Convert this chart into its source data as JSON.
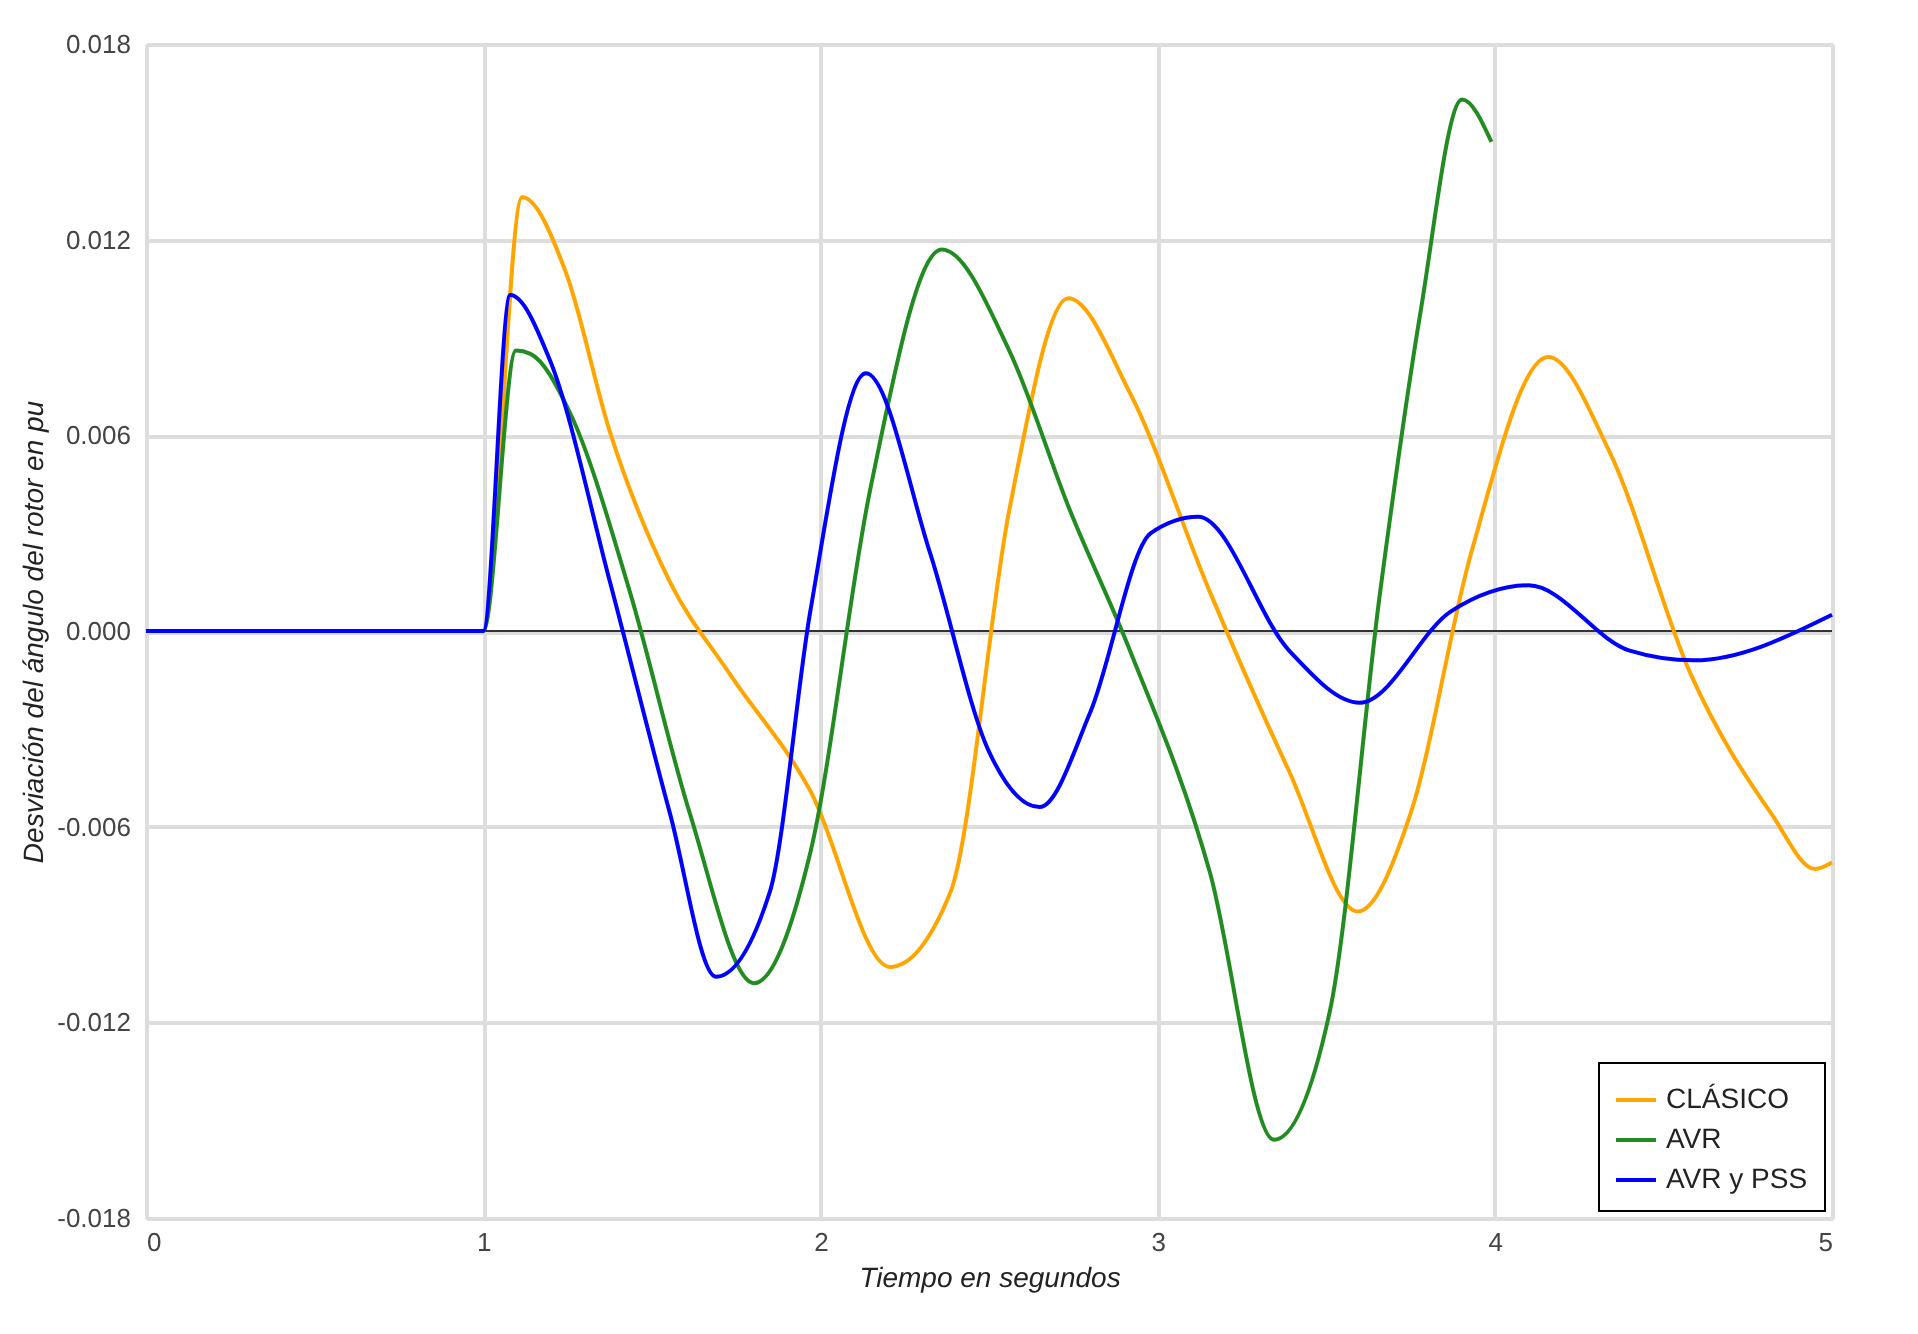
{
  "chart_data": {
    "type": "line",
    "xlabel": "Tiempo en segundos",
    "ylabel": "Desviación del ángulo del rotor en pu",
    "xlim": [
      0,
      5
    ],
    "xticks": [
      0,
      1,
      2,
      3,
      4,
      5
    ],
    "ylim": [
      -0.018,
      0.018
    ],
    "yticks": [
      {
        "value": -0.018,
        "label": "-0.018"
      },
      {
        "value": -0.012,
        "label": "-0.012"
      },
      {
        "value": -0.006,
        "label": "-0.006"
      },
      {
        "value": 0,
        "label": "0.000"
      },
      {
        "value": 0.006,
        "label": "0.006"
      },
      {
        "value": 0.012,
        "label": "0.012"
      },
      {
        "value": 0.018,
        "label": "0.018"
      }
    ],
    "grid": true,
    "legend": "bottom right",
    "marker": "none",
    "line_style": "solid",
    "ref_lines": [
      {
        "axis": "y",
        "value": 0,
        "label": null,
        "color": "#333333"
      }
    ],
    "series": [
      {
        "name": "CLÁSICO",
        "color": "#ffa500",
        "x": [
          0,
          1.0,
          1.115,
          1.245,
          1.376,
          1.554,
          1.73,
          1.97,
          2.206,
          2.386,
          2.56,
          2.735,
          2.918,
          3.155,
          3.39,
          3.594,
          3.75,
          3.93,
          4.158,
          4.34,
          4.58,
          4.82,
          4.95,
          5.0
        ],
        "values": [
          0,
          0,
          0.0133,
          0.011,
          0.0061,
          0.0015,
          -0.0013,
          -0.0049,
          -0.0103,
          -0.008,
          0.0037,
          0.0102,
          0.0073,
          0.0012,
          -0.0043,
          -0.0086,
          -0.0056,
          0.0024,
          0.0084,
          0.0055,
          -0.0013,
          -0.0056,
          -0.0073,
          -0.0071
        ]
      },
      {
        "name": "AVR",
        "color": "#228b22",
        "x": [
          0,
          1.0,
          1.097,
          1.14,
          1.257,
          1.435,
          1.613,
          1.803,
          1.97,
          2.147,
          2.36,
          2.56,
          2.74,
          2.918,
          3.155,
          3.345,
          3.51,
          3.66,
          3.78,
          3.903,
          3.99
        ],
        "values": [
          0,
          0,
          0.0086,
          0.0085,
          0.0067,
          0.0012,
          -0.0056,
          -0.0108,
          -0.0068,
          0.0043,
          0.0117,
          0.0086,
          0.0037,
          -0.0006,
          -0.0074,
          -0.0156,
          -0.0117,
          0.0012,
          0.0098,
          0.0163,
          0.015
        ]
      },
      {
        "name": "AVR y PSS",
        "color": "#0000ff",
        "x": [
          0,
          1.0,
          1.08,
          1.198,
          1.376,
          1.554,
          1.69,
          1.85,
          1.97,
          2.135,
          2.325,
          2.5,
          2.65,
          2.8,
          2.98,
          3.12,
          3.39,
          3.6,
          3.87,
          4.1,
          4.4,
          4.59,
          5.0
        ],
        "values": [
          0,
          0,
          0.0103,
          0.0083,
          0.0015,
          -0.0056,
          -0.0106,
          -0.008,
          0.0006,
          0.0079,
          0.0024,
          -0.0037,
          -0.0054,
          -0.0025,
          0.003,
          0.0035,
          -0.0006,
          -0.0022,
          0.0006,
          0.0014,
          -0.0006,
          -0.0009,
          0.0005
        ]
      }
    ]
  }
}
